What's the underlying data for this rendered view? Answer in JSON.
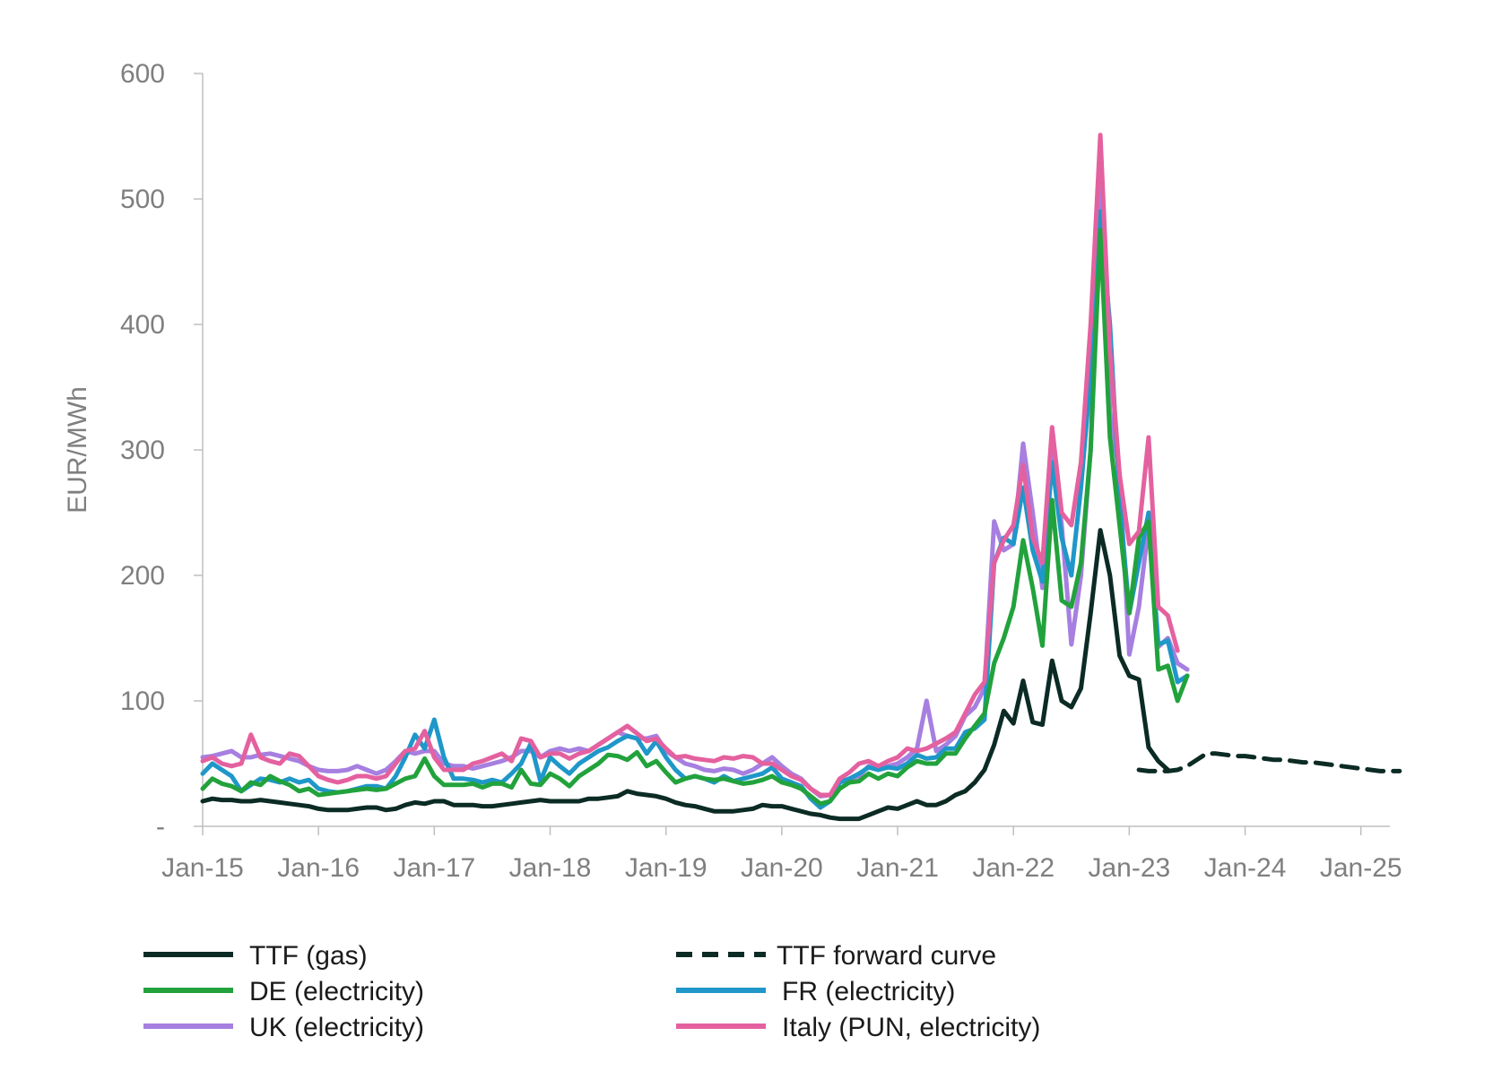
{
  "chart_data": {
    "type": "line",
    "title": "",
    "ylabel": "EUR/MWh",
    "xlabel": "",
    "ylim": [
      0,
      600
    ],
    "xlim": [
      "2015-01",
      "2025-04"
    ],
    "y_ticks": [
      0,
      100,
      200,
      300,
      400,
      500,
      600
    ],
    "y_tick_labels": [
      "-",
      "100",
      "200",
      "300",
      "400",
      "500",
      "600"
    ],
    "x_ticks": [
      "2015-01",
      "2016-01",
      "2017-01",
      "2018-01",
      "2019-01",
      "2020-01",
      "2021-01",
      "2022-01",
      "2023-01",
      "2024-01",
      "2025-01"
    ],
    "x_tick_labels": [
      "Jan-15",
      "Jan-16",
      "Jan-17",
      "Jan-18",
      "Jan-19",
      "Jan-20",
      "Jan-21",
      "Jan-22",
      "Jan-23",
      "Jan-24",
      "Jan-25"
    ],
    "grid": false,
    "legend_position": "bottom",
    "series": [
      {
        "name": "TTF (gas)",
        "color": "#0b2b24",
        "dash": "solid",
        "start": "2015-01",
        "values": [
          20,
          22,
          21,
          21,
          20,
          20,
          21,
          20,
          19,
          18,
          17,
          16,
          14,
          13,
          13,
          13,
          14,
          15,
          15,
          13,
          14,
          17,
          19,
          18,
          20,
          20,
          17,
          17,
          17,
          16,
          16,
          17,
          18,
          19,
          20,
          21,
          20,
          20,
          20,
          20,
          22,
          22,
          23,
          24,
          28,
          26,
          25,
          24,
          22,
          19,
          17,
          16,
          14,
          12,
          12,
          12,
          13,
          14,
          17,
          16,
          16,
          14,
          12,
          10,
          9,
          7,
          6,
          6,
          6,
          9,
          12,
          15,
          14,
          17,
          20,
          17,
          17,
          20,
          25,
          28,
          35,
          45,
          65,
          92,
          82,
          116,
          83,
          81,
          132,
          100,
          95,
          110,
          170,
          236,
          200,
          136,
          120,
          117,
          63,
          52,
          45
        ]
      },
      {
        "name": "TTF forward curve",
        "color": "#0b2b24",
        "dash": "dashed",
        "start": "2023-02",
        "values": [
          45,
          44,
          44,
          44,
          45,
          48,
          53,
          58,
          58,
          57,
          56,
          56,
          55,
          54,
          53,
          53,
          52,
          51,
          51,
          50,
          49,
          48,
          47,
          46,
          45,
          44,
          44,
          44
        ]
      },
      {
        "name": "DE (electricity)",
        "color": "#22a23c",
        "dash": "solid",
        "start": "2015-01",
        "values": [
          30,
          38,
          34,
          32,
          28,
          35,
          33,
          40,
          36,
          33,
          28,
          30,
          25,
          26,
          27,
          28,
          29,
          30,
          29,
          30,
          34,
          38,
          40,
          54,
          40,
          33,
          33,
          33,
          34,
          31,
          34,
          34,
          31,
          45,
          34,
          33,
          42,
          38,
          32,
          40,
          45,
          50,
          57,
          56,
          53,
          59,
          48,
          52,
          43,
          35,
          38,
          40,
          38,
          37,
          38,
          36,
          34,
          35,
          37,
          40,
          35,
          33,
          30,
          24,
          18,
          20,
          30,
          35,
          36,
          42,
          38,
          42,
          40,
          47,
          52,
          50,
          50,
          58,
          58,
          70,
          80,
          90,
          130,
          150,
          175,
          228,
          190,
          144,
          260,
          180,
          175,
          210,
          300,
          475,
          310,
          240,
          170,
          230,
          243,
          125,
          128,
          100,
          120
        ]
      },
      {
        "name": "FR (electricity)",
        "color": "#1f97c9",
        "dash": "solid",
        "start": "2015-01",
        "values": [
          42,
          50,
          45,
          40,
          28,
          33,
          38,
          37,
          35,
          38,
          35,
          37,
          30,
          28,
          27,
          28,
          30,
          32,
          32,
          30,
          40,
          55,
          73,
          62,
          85,
          55,
          38,
          38,
          37,
          35,
          37,
          35,
          42,
          50,
          66,
          36,
          55,
          48,
          42,
          50,
          55,
          60,
          63,
          68,
          72,
          70,
          58,
          68,
          55,
          45,
          38,
          40,
          38,
          35,
          40,
          36,
          38,
          40,
          42,
          47,
          38,
          35,
          32,
          22,
          15,
          20,
          35,
          38,
          42,
          47,
          45,
          47,
          46,
          50,
          57,
          54,
          55,
          62,
          62,
          75,
          78,
          85,
          210,
          230,
          225,
          270,
          220,
          195,
          290,
          230,
          200,
          270,
          360,
          490,
          400,
          260,
          170,
          210,
          250,
          145,
          148,
          115,
          120
        ]
      },
      {
        "name": "UK (electricity)",
        "color": "#a67fe0",
        "dash": "solid",
        "start": "2015-01",
        "values": [
          55,
          56,
          58,
          60,
          55,
          55,
          57,
          58,
          56,
          54,
          52,
          48,
          45,
          44,
          44,
          45,
          48,
          45,
          42,
          45,
          52,
          60,
          58,
          60,
          60,
          50,
          48,
          48,
          46,
          48,
          50,
          52,
          55,
          60,
          60,
          55,
          60,
          62,
          60,
          62,
          60,
          65,
          70,
          75,
          72,
          70,
          70,
          72,
          60,
          55,
          50,
          48,
          45,
          44,
          46,
          45,
          42,
          45,
          50,
          55,
          48,
          42,
          38,
          30,
          24,
          25,
          35,
          38,
          40,
          48,
          45,
          48,
          50,
          55,
          62,
          100,
          60,
          65,
          72,
          88,
          95,
          110,
          243,
          220,
          225,
          305,
          250,
          190,
          300,
          240,
          145,
          200,
          300,
          535,
          330,
          280,
          137,
          175,
          240,
          143,
          150,
          130,
          125
        ]
      },
      {
        "name": "Italy (PUN, electricity)",
        "color": "#e4619f",
        "dash": "solid",
        "start": "2015-01",
        "values": [
          52,
          55,
          50,
          48,
          50,
          73,
          55,
          52,
          50,
          58,
          56,
          48,
          40,
          37,
          35,
          37,
          40,
          40,
          38,
          40,
          50,
          60,
          62,
          76,
          55,
          45,
          45,
          45,
          50,
          52,
          55,
          58,
          52,
          70,
          68,
          55,
          58,
          58,
          54,
          58,
          60,
          65,
          70,
          75,
          80,
          74,
          68,
          70,
          62,
          55,
          56,
          54,
          53,
          52,
          55,
          54,
          56,
          55,
          50,
          50,
          45,
          40,
          37,
          30,
          25,
          25,
          38,
          43,
          50,
          52,
          48,
          52,
          55,
          62,
          60,
          62,
          66,
          70,
          75,
          90,
          105,
          115,
          210,
          228,
          240,
          288,
          230,
          210,
          318,
          250,
          240,
          290,
          400,
          551,
          380,
          280,
          225,
          235,
          310,
          175,
          168,
          140
        ]
      }
    ]
  }
}
